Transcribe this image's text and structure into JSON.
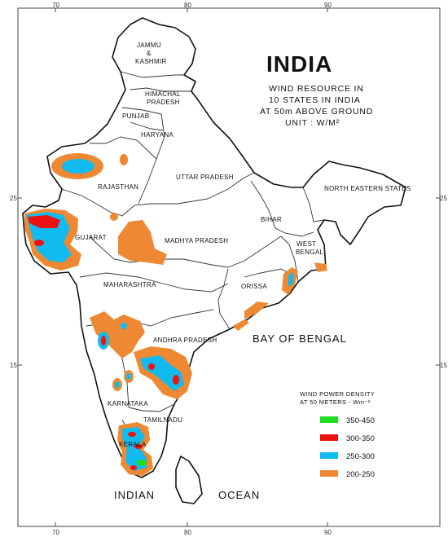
{
  "title": "INDIA",
  "subtitle": [
    "WIND RESOURCE IN",
    "10 STATES IN INDIA",
    "AT 50m ABOVE GROUND",
    "UNIT : W/M²"
  ],
  "graticule": {
    "top": [
      "70",
      "80",
      "90"
    ],
    "bottom": [
      "70",
      "80",
      "90"
    ],
    "left": [
      "25",
      "15"
    ],
    "right": [
      "25",
      "15"
    ]
  },
  "regions": {
    "jammu": "JAMMU",
    "amp": "&",
    "kashmir": "KASHMIR",
    "himachal": "HIMACHAL",
    "pradesh": "PRADESH",
    "punjab": "PUNJAB",
    "haryana": "HARYANA",
    "rajasthan": "RAJASTHAN",
    "uttar_pradesh": "UTTAR PRADESH",
    "ne_states": "NORTH EASTERN STATES",
    "gujarat": "GUJARAT",
    "madhya_pradesh": "MADHYA PRADESH",
    "bihar": "BIHAR",
    "west": "WEST",
    "bengal": "BENGAL",
    "maharashtra": "MAHARASHTRA",
    "orissa": "ORISSA",
    "andhra_pradesh": "ANDHRA PRADESH",
    "karnataka": "KARNATAKA",
    "tamilnadu": "TAMILNADU",
    "kerala": "KERALA"
  },
  "seas": {
    "bay_of_bengal": "BAY OF BENGAL",
    "indian": "INDIAN",
    "ocean": "OCEAN"
  },
  "legend": {
    "title_line1": "WIND POWER DENSITY",
    "title_line2": "AT 50 METERS - Wm⁻²",
    "items": [
      {
        "label": "350-450",
        "color": "#22dd22"
      },
      {
        "label": "300-350",
        "color": "#ee1111"
      },
      {
        "label": "250-300",
        "color": "#11bbee"
      },
      {
        "label": "200-250",
        "color": "#ee8833"
      }
    ]
  },
  "colors": {
    "class_200_250": "#ee8833",
    "class_250_300": "#11bbee",
    "class_300_350": "#ee1111",
    "class_350_450": "#22dd22",
    "outline": "#111111"
  }
}
